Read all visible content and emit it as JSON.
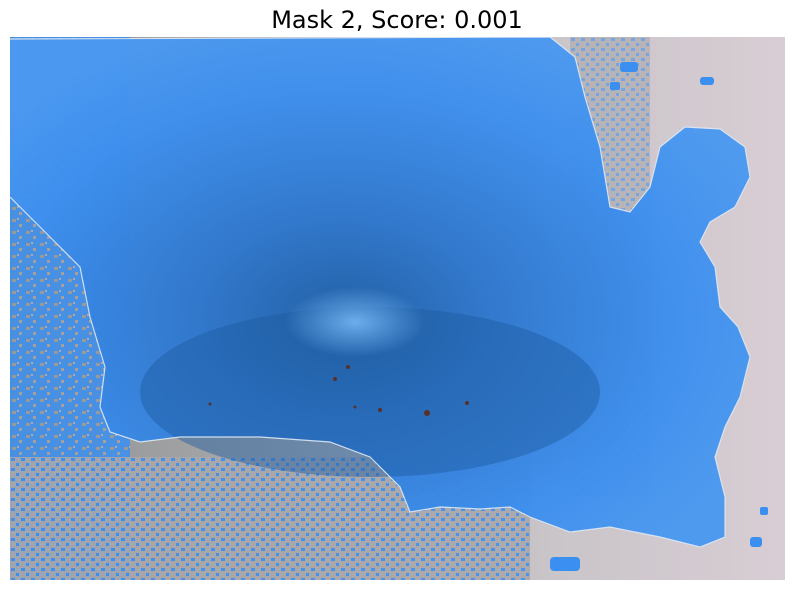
{
  "title": "Mask 2, Score: 0.001",
  "colors": {
    "mask": "#3b8ff0",
    "mask_dark": "#1e5fa8",
    "background": "#b9b9bd",
    "background_shade": "#8f8f8f",
    "edge_tint": "#c7b8c4",
    "outline": "#dfe8f5"
  }
}
